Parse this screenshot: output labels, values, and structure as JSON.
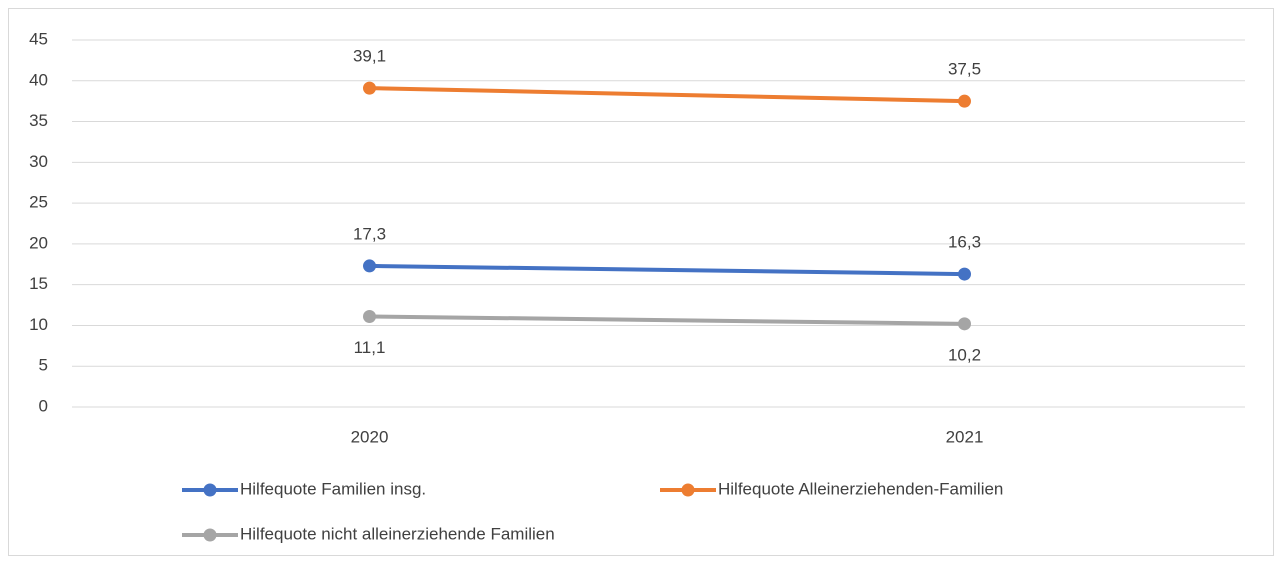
{
  "chart_data": {
    "type": "line",
    "categories": [
      "2020",
      "2021"
    ],
    "series": [
      {
        "name": "Hilfequote Familien insg.",
        "color": "#4472c4",
        "values": [
          17.3,
          16.3
        ],
        "value_labels": [
          "17,3",
          "16,3"
        ]
      },
      {
        "name": "Hilfequote Alleinerziehenden-Familien",
        "color": "#ed7d31",
        "values": [
          39.1,
          37.5
        ],
        "value_labels": [
          "39,1",
          "37,5"
        ]
      },
      {
        "name": "Hilfequote nicht alleinerziehende Familien",
        "color": "#a5a5a5",
        "values": [
          11.1,
          10.2
        ],
        "value_labels": [
          "11,1",
          "10,2"
        ]
      }
    ],
    "ylim": [
      0,
      45
    ],
    "yticks": [
      0,
      5,
      10,
      15,
      20,
      25,
      30,
      35,
      40,
      45
    ],
    "grid": true,
    "legend": "bottom"
  }
}
